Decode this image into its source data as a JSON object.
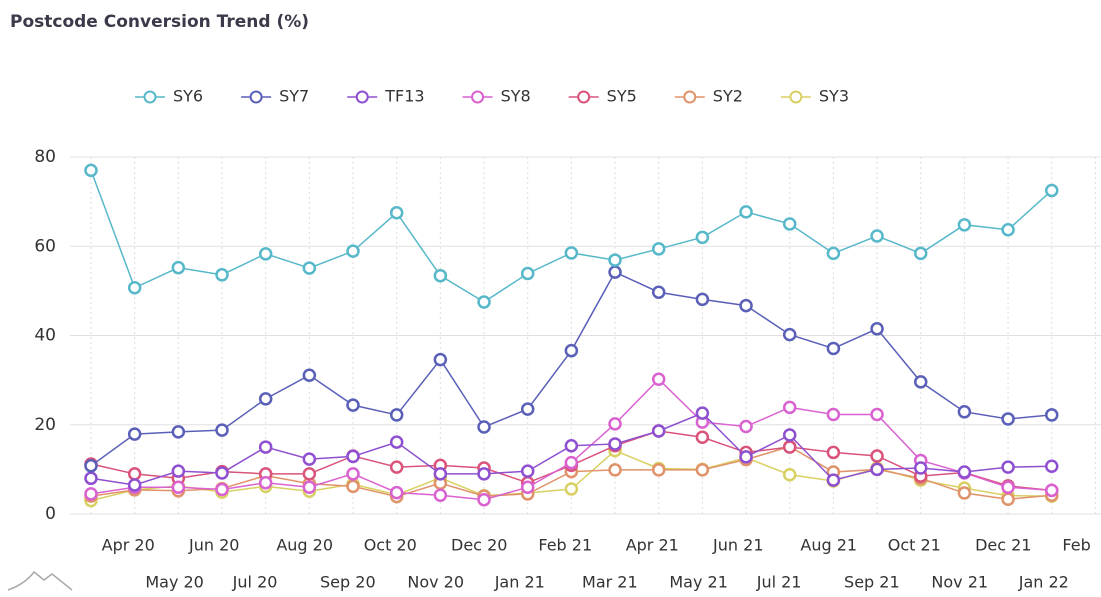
{
  "chart_data": {
    "type": "line",
    "title": "Postcode Conversion Trend (%)",
    "categories": [
      null,
      "Apr 20",
      "May 20",
      "Jun 20",
      "Jul 20",
      "Aug 20",
      "Sep 20",
      "Oct 20",
      "Nov 20",
      "Dec 20",
      "Jan 21",
      "Feb 21",
      "Mar 21",
      "Apr 21",
      "May 21",
      "Jun 21",
      "Jul 21",
      "Aug 21",
      "Sep 21",
      "Oct 21",
      "Nov 21",
      "Dec 21",
      "Jan 22",
      "Feb"
    ],
    "series": [
      {
        "name": "SY6",
        "color": "#56b8c9",
        "values": [
          77,
          50.7,
          55.2,
          53.6,
          58.3,
          55.1,
          58.9,
          67.5,
          53.4,
          47.5,
          53.9,
          58.5,
          56.9,
          59.4,
          62,
          67.7,
          65,
          58.4,
          62.3,
          58.4,
          64.8,
          63.7,
          72.5,
          null
        ]
      },
      {
        "name": "SY7",
        "color": "#5a5fb8",
        "values": [
          10.8,
          17.9,
          18.4,
          18.8,
          25.8,
          31.1,
          24.4,
          22.2,
          34.6,
          19.5,
          23.5,
          36.6,
          54.2,
          49.7,
          48.1,
          46.7,
          40.2,
          37.1,
          41.5,
          29.6,
          22.9,
          21.3,
          22.2,
          null
        ]
      },
      {
        "name": "TF13",
        "color": "#8e4fd0",
        "values": [
          8,
          6.5,
          9.6,
          9.2,
          15,
          12.3,
          12.9,
          16.1,
          9,
          9,
          9.6,
          15.3,
          15.7,
          18.6,
          22.6,
          12.8,
          17.7,
          7.6,
          10,
          10.3,
          9.4,
          10.5,
          10.7,
          null
        ]
      },
      {
        "name": "SY8",
        "color": "#d961d0",
        "values": [
          4.5,
          6,
          6,
          5.5,
          7,
          6,
          9,
          4.8,
          4.2,
          3.2,
          6,
          11.5,
          20.2,
          30.2,
          20.6,
          19.6,
          23.9,
          22.3,
          22.3,
          12,
          9.2,
          6,
          5.3,
          null
        ]
      },
      {
        "name": "SY5",
        "color": "#d9537a",
        "values": [
          11.2,
          9,
          8,
          9.5,
          9,
          9,
          13,
          10.5,
          10.9,
          10.3,
          7,
          10.9,
          15.3,
          18.6,
          17.2,
          13.8,
          15,
          13.8,
          13,
          8.5,
          9.3,
          6.3,
          5.3,
          null
        ]
      },
      {
        "name": "SY2",
        "color": "#e0936a",
        "values": [
          4,
          5.4,
          5.2,
          5.7,
          8.6,
          6.8,
          6.2,
          3.9,
          6.9,
          4,
          4.5,
          9.5,
          9.9,
          9.9,
          9.9,
          12.2,
          15.1,
          9.4,
          10,
          8,
          4.7,
          3.3,
          4.2,
          null
        ]
      },
      {
        "name": "SY3",
        "color": "#d9d062",
        "values": [
          3,
          5.4,
          6.3,
          4.9,
          6.2,
          5.1,
          6.7,
          4.3,
          8.1,
          4.1,
          4.7,
          5.6,
          14.2,
          10.2,
          10,
          12.6,
          8.8,
          7.4,
          10.3,
          7.6,
          5.8,
          4.1,
          4,
          null
        ]
      }
    ],
    "ylim": [
      0,
      80
    ],
    "yticks": [
      0,
      20,
      40,
      60,
      80
    ],
    "grid": true,
    "legend": "top"
  }
}
